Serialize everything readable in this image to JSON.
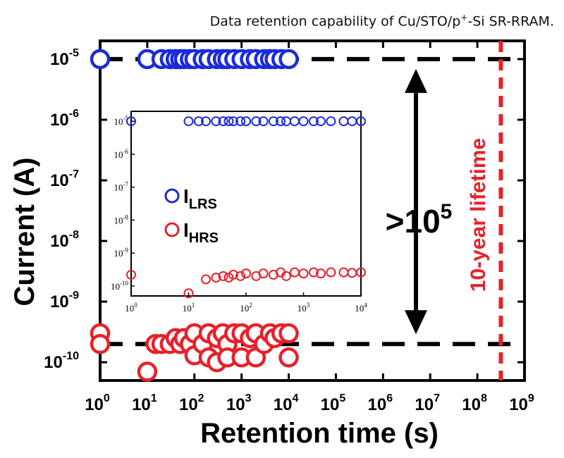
{
  "title": {
    "prefix": "Data retention  capability of Cu/STO/p",
    "sup": "+",
    "suffix": "-Si SR-RRAM."
  },
  "colors": {
    "lrs": "#1c2bd8",
    "hrs": "#e6212b",
    "lifetime": "#e6212b",
    "axis": "#000000"
  },
  "chart_data": [
    {
      "type": "scatter",
      "role": "main",
      "xlabel": "Retention time (s)",
      "ylabel": "Current (A)",
      "xscale": "log",
      "yscale": "log",
      "xlim": [
        1,
        1000000000
      ],
      "ylim": [
        5e-11,
        2e-05
      ],
      "x_ticks": [
        "10^0",
        "10^1",
        "10^2",
        "10^3",
        "10^4",
        "10^5",
        "10^6",
        "10^7",
        "10^8",
        "10^9"
      ],
      "y_ticks": [
        "10^-5",
        "10^-6",
        "10^-7",
        "10^-8",
        "10^-9",
        "10^-10"
      ],
      "series": [
        {
          "key": "lrs",
          "x": [
            1,
            10,
            20,
            30,
            40,
            50,
            60,
            80,
            100,
            150,
            200,
            300,
            400,
            500,
            700,
            1000,
            1500,
            2000,
            3000,
            4000,
            5000,
            7000,
            10000
          ],
          "y": [
            1e-05,
            1e-05,
            1e-05,
            1e-05,
            1e-05,
            1e-05,
            1e-05,
            1e-05,
            1e-05,
            1e-05,
            1e-05,
            1e-05,
            1e-05,
            1e-05,
            1e-05,
            1e-05,
            1e-05,
            1e-05,
            1e-05,
            1e-05,
            1e-05,
            1e-05,
            1e-05
          ]
        },
        {
          "key": "hrs",
          "x": [
            1,
            1,
            10,
            15,
            20,
            30,
            40,
            50,
            60,
            80,
            100,
            100,
            150,
            200,
            200,
            300,
            300,
            400,
            500,
            500,
            700,
            1000,
            1000,
            1500,
            2000,
            2000,
            3000,
            4000,
            5000,
            7000,
            10000,
            10000
          ],
          "y": [
            3e-10,
            2e-10,
            7e-11,
            2e-10,
            2e-10,
            2e-10,
            2.5e-10,
            2e-10,
            2.5e-10,
            2e-10,
            3e-10,
            1.3e-10,
            2e-10,
            3e-10,
            1.2e-10,
            2.5e-10,
            1e-10,
            3e-10,
            2e-10,
            1.2e-10,
            3e-10,
            3e-10,
            1.2e-10,
            2.5e-10,
            3e-10,
            1.2e-10,
            2e-10,
            3e-10,
            2.5e-10,
            3e-10,
            3e-10,
            1.2e-10
          ]
        }
      ],
      "reference_lines": {
        "lrs_level": 1e-05,
        "hrs_level": 2e-10,
        "lifetime_x": 315000000
      },
      "annotations": {
        "ratio_base": ">10",
        "ratio_exp": "5",
        "lifetime": "10-year lifetime"
      }
    },
    {
      "type": "scatter",
      "role": "inset",
      "xscale": "log",
      "yscale": "log",
      "xlim": [
        1,
        10000
      ],
      "ylim": [
        5e-11,
        2e-05
      ],
      "x_ticks": [
        "10^0",
        "10^1",
        "10^2",
        "10^3",
        "10^4"
      ],
      "y_ticks": [
        "10^-5",
        "10^-6",
        "10^-7",
        "10^-8",
        "10^-9",
        "10^-10"
      ],
      "legend": [
        {
          "key": "lrs",
          "label": "I",
          "sub": "LRS"
        },
        {
          "key": "hrs",
          "label": "I",
          "sub": "HRS"
        }
      ],
      "series": [
        {
          "key": "lrs",
          "x": [
            1,
            10,
            15,
            20,
            30,
            40,
            50,
            60,
            80,
            100,
            150,
            200,
            300,
            400,
            500,
            700,
            1000,
            1500,
            2000,
            3000,
            5000,
            7000,
            10000
          ],
          "y": [
            1e-05,
            1e-05,
            1e-05,
            1e-05,
            1e-05,
            1e-05,
            1e-05,
            1e-05,
            1e-05,
            1e-05,
            1e-05,
            1e-05,
            1e-05,
            1e-05,
            1e-05,
            1e-05,
            1e-05,
            1e-05,
            1e-05,
            1e-05,
            1e-05,
            1e-05,
            1e-05
          ]
        },
        {
          "key": "hrs",
          "x": [
            1,
            10,
            20,
            30,
            40,
            50,
            60,
            80,
            100,
            150,
            200,
            300,
            400,
            500,
            700,
            1000,
            1500,
            2000,
            3000,
            5000,
            7000,
            10000
          ],
          "y": [
            2.2e-10,
            6e-11,
            1.6e-10,
            1.8e-10,
            2e-10,
            1.8e-10,
            2.2e-10,
            2e-10,
            2.4e-10,
            2e-10,
            2.4e-10,
            2.2e-10,
            2.6e-10,
            2e-10,
            2.6e-10,
            2.4e-10,
            2.6e-10,
            2.4e-10,
            2.6e-10,
            2.6e-10,
            2.5e-10,
            2.6e-10
          ]
        }
      ]
    }
  ]
}
